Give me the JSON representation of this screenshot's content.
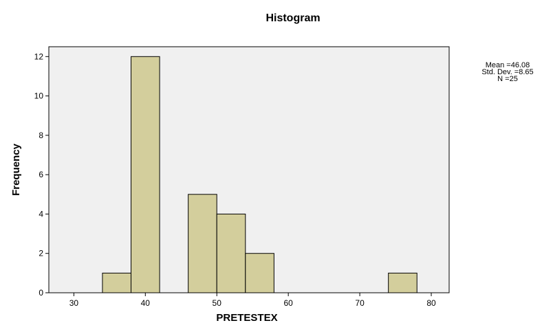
{
  "chart_data": {
    "type": "bar",
    "title": "Histogram",
    "xlabel": "PRETESTEX",
    "ylabel": "Frequency",
    "xlim": [
      26.5,
      82.5
    ],
    "ylim": [
      0,
      12.5
    ],
    "xticks": [
      30,
      40,
      50,
      60,
      70,
      80
    ],
    "yticks": [
      0,
      2,
      4,
      6,
      8,
      10,
      12
    ],
    "bin_width": 4,
    "bins": [
      {
        "start": 34,
        "end": 38,
        "count": 1
      },
      {
        "start": 38,
        "end": 42,
        "count": 12
      },
      {
        "start": 46,
        "end": 50,
        "count": 5
      },
      {
        "start": 50,
        "end": 54,
        "count": 4
      },
      {
        "start": 54,
        "end": 58,
        "count": 2
      },
      {
        "start": 74,
        "end": 78,
        "count": 1
      }
    ],
    "statistics": {
      "mean": "Mean =46.08",
      "std_dev": "Std. Dev. =8.65",
      "n": "N =25"
    },
    "grid": false,
    "colors": {
      "bar_fill": "#D3CE9C",
      "bar_stroke": "#000000",
      "plot_bg": "#F0F0F0",
      "frame": "#000000"
    }
  }
}
